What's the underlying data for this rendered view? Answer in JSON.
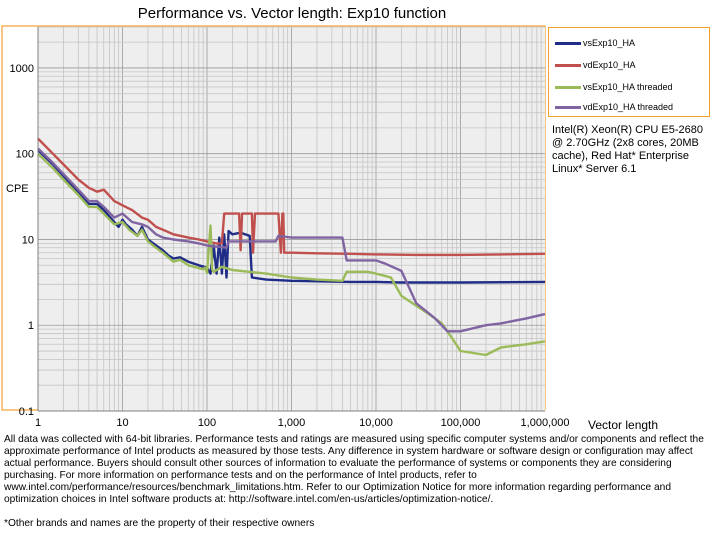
{
  "chart_data": {
    "type": "line",
    "title": "Performance vs. Vector length: Exp10 function",
    "xlabel": "Vector length",
    "ylabel": "CPE",
    "x_scale": "log",
    "y_scale": "log",
    "xlim": [
      1,
      1000000
    ],
    "ylim": [
      0.1,
      3000
    ],
    "x_ticks": [
      1,
      10,
      100,
      1000,
      10000,
      100000,
      1000000
    ],
    "x_tick_labels": [
      "1",
      "10",
      "100",
      "1,000",
      "10,000",
      "100,000",
      "1,000,000"
    ],
    "y_ticks": [
      0.1,
      1,
      10,
      100,
      1000
    ],
    "y_tick_labels": [
      "0.1",
      "1",
      "10",
      "100",
      "1000"
    ],
    "grid": true,
    "legend_position": "right",
    "series": [
      {
        "name": "vsExp10_HA",
        "color": "#1f2d86",
        "points": [
          [
            1,
            110
          ],
          [
            1.5,
            75
          ],
          [
            2,
            55
          ],
          [
            3,
            35
          ],
          [
            4,
            26
          ],
          [
            5,
            26
          ],
          [
            6,
            22
          ],
          [
            8,
            16
          ],
          [
            9,
            14
          ],
          [
            10,
            17
          ],
          [
            11,
            15
          ],
          [
            13,
            13
          ],
          [
            15,
            11
          ],
          [
            17,
            14
          ],
          [
            20,
            10
          ],
          [
            25,
            8.5
          ],
          [
            30,
            7.5
          ],
          [
            35,
            6.5
          ],
          [
            40,
            6.0
          ],
          [
            48,
            6.2
          ],
          [
            60,
            5.5
          ],
          [
            80,
            5.0
          ],
          [
            100,
            4.7
          ],
          [
            110,
            4.0
          ],
          [
            120,
            8.5
          ],
          [
            130,
            4.0
          ],
          [
            140,
            10.5
          ],
          [
            150,
            4.0
          ],
          [
            160,
            11.5
          ],
          [
            170,
            3.6
          ],
          [
            180,
            12.5
          ],
          [
            200,
            11.5
          ],
          [
            250,
            12.0
          ],
          [
            320,
            11.0
          ],
          [
            340,
            3.6
          ],
          [
            500,
            3.4
          ],
          [
            1000,
            3.3
          ],
          [
            5000,
            3.2
          ],
          [
            10000,
            3.2
          ],
          [
            20000,
            3.15
          ],
          [
            100000,
            3.15
          ],
          [
            1000000,
            3.2
          ]
        ]
      },
      {
        "name": "vdExp10_HA",
        "color": "#c0504d",
        "points": [
          [
            1,
            150
          ],
          [
            1.5,
            100
          ],
          [
            2,
            75
          ],
          [
            3,
            50
          ],
          [
            4,
            40
          ],
          [
            5,
            36
          ],
          [
            6,
            38
          ],
          [
            8,
            28
          ],
          [
            10,
            25
          ],
          [
            13,
            22
          ],
          [
            17,
            18
          ],
          [
            20,
            17
          ],
          [
            25,
            14
          ],
          [
            30,
            13
          ],
          [
            40,
            11.5
          ],
          [
            60,
            10.5
          ],
          [
            80,
            10
          ],
          [
            100,
            9.5
          ],
          [
            130,
            9.0
          ],
          [
            150,
            9.0
          ],
          [
            160,
            20
          ],
          [
            200,
            20
          ],
          [
            240,
            20
          ],
          [
            250,
            7.5
          ],
          [
            260,
            20
          ],
          [
            340,
            20
          ],
          [
            350,
            7.0
          ],
          [
            370,
            20
          ],
          [
            700,
            20
          ],
          [
            750,
            7.0
          ],
          [
            780,
            20
          ],
          [
            800,
            20
          ],
          [
            820,
            7.0
          ],
          [
            1000,
            7.0
          ],
          [
            2000,
            6.9
          ],
          [
            5000,
            6.8
          ],
          [
            10000,
            6.7
          ],
          [
            30000,
            6.6
          ],
          [
            100000,
            6.6
          ],
          [
            300000,
            6.7
          ],
          [
            1000000,
            6.8
          ]
        ]
      },
      {
        "name": "vsExp10_HA threaded",
        "color": "#9bbb59",
        "points": [
          [
            1,
            100
          ],
          [
            1.5,
            68
          ],
          [
            2,
            50
          ],
          [
            3,
            33
          ],
          [
            4,
            24
          ],
          [
            5,
            24
          ],
          [
            6,
            20
          ],
          [
            8,
            15
          ],
          [
            10,
            16
          ],
          [
            12,
            13
          ],
          [
            15,
            11
          ],
          [
            17,
            13
          ],
          [
            20,
            9.5
          ],
          [
            25,
            8.0
          ],
          [
            30,
            7.0
          ],
          [
            40,
            5.5
          ],
          [
            48,
            5.8
          ],
          [
            60,
            5.0
          ],
          [
            70,
            4.8
          ],
          [
            90,
            4.5
          ],
          [
            95,
            4.7
          ],
          [
            100,
            4.1
          ],
          [
            110,
            14.5
          ],
          [
            115,
            4.5
          ],
          [
            120,
            4.2
          ],
          [
            150,
            4.8
          ],
          [
            200,
            4.4
          ],
          [
            500,
            4.0
          ],
          [
            1000,
            3.6
          ],
          [
            2000,
            3.4
          ],
          [
            4000,
            3.3
          ],
          [
            4500,
            4.2
          ],
          [
            8000,
            4.2
          ],
          [
            10000,
            4.0
          ],
          [
            15000,
            3.6
          ],
          [
            20000,
            2.2
          ],
          [
            40000,
            1.4
          ],
          [
            60000,
            1.05
          ],
          [
            80000,
            0.7
          ],
          [
            100000,
            0.5
          ],
          [
            200000,
            0.45
          ],
          [
            300000,
            0.55
          ],
          [
            600000,
            0.6
          ],
          [
            1000000,
            0.65
          ]
        ]
      },
      {
        "name": "vdExp10_HA threaded",
        "color": "#8064a2",
        "points": [
          [
            1,
            115
          ],
          [
            1.5,
            78
          ],
          [
            2,
            58
          ],
          [
            3,
            38
          ],
          [
            4,
            28
          ],
          [
            5,
            28
          ],
          [
            6,
            24
          ],
          [
            8,
            18
          ],
          [
            10,
            20
          ],
          [
            13,
            16
          ],
          [
            17,
            15
          ],
          [
            20,
            14
          ],
          [
            25,
            11.5
          ],
          [
            30,
            10.5
          ],
          [
            40,
            10
          ],
          [
            60,
            9.5
          ],
          [
            80,
            9.0
          ],
          [
            100,
            8.5
          ],
          [
            120,
            8.3
          ],
          [
            150,
            8.2
          ],
          [
            170,
            8.0
          ],
          [
            180,
            9.5
          ],
          [
            300,
            9.5
          ],
          [
            650,
            9.5
          ],
          [
            700,
            11
          ],
          [
            1000,
            10.5
          ],
          [
            3000,
            10.5
          ],
          [
            4000,
            10.5
          ],
          [
            4500,
            5.7
          ],
          [
            10000,
            5.7
          ],
          [
            13000,
            5.2
          ],
          [
            20000,
            4.3
          ],
          [
            30000,
            1.8
          ],
          [
            50000,
            1.2
          ],
          [
            70000,
            0.85
          ],
          [
            100000,
            0.85
          ],
          [
            200000,
            1.0
          ],
          [
            300000,
            1.05
          ],
          [
            600000,
            1.2
          ],
          [
            1000000,
            1.35
          ]
        ]
      }
    ]
  },
  "cpu_note": "Intel(R) Xeon(R) CPU E5-2680 @ 2.70GHz (2x8 cores, 20MB cache), Red Hat* Enterprise Linux* Server 6.1",
  "disclaimer": "All data was collected with 64-bit libraries. Performance tests and ratings are measured using specific computer systems and/or components and reflect the approximate performance of Intel products as measured by those tests. Any difference in system hardware or software design or configuration may affect actual performance. Buyers should consult other sources of information to evaluate the performance of systems or components they are considering purchasing. For more information on performance tests and on the performance of Intel products, refer to www.intel.com/performance/resources/benchmark_limitations.htm. Refer to our Optimization Notice for more information regarding performance and optimization choices in Intel software products at: http://software.intel.com/en-us/articles/optimization-notice/.",
  "footnote": "*Other brands and names are the property of their respective owners"
}
